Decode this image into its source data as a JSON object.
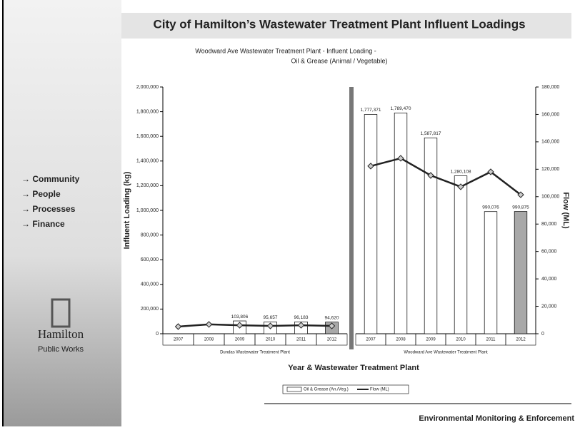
{
  "header": {
    "title": "City of Hamilton’s Wastewater Treatment Plant Influent Loadings"
  },
  "sidebar": {
    "items": [
      "→ Community",
      "→ People",
      "→ Processes",
      "→ Finance"
    ],
    "logo": "Hamilton",
    "logo_subtitle": "Public Works"
  },
  "footer": "Environmental Monitoring & Enforcement",
  "chart_data": {
    "type": "bar",
    "title": [
      "Woodward Ave Wastewater Treatment Plant - Influent Loading -",
      "Oil & Grease (Animal / Vegetable)"
    ],
    "xlabel": "Year & Wastewater Treatment Plant",
    "ylabel": "Influent Loading (kg)",
    "y2label": "Flow (ML)",
    "groups": [
      "Dundas Wastewater Treatment Plant",
      "Woodward Ave Wastewater Treatment Plant"
    ],
    "categories": [
      "2007",
      "2008",
      "2009",
      "2010",
      "2011",
      "2012",
      "2007",
      "2008",
      "2009",
      "2010",
      "2011",
      "2012"
    ],
    "series": [
      {
        "name": "Oil & Grease (An./Veg.)",
        "type": "bar",
        "color": "#ffffff",
        "colors": [
          "#ffffff",
          "#ffffff",
          "#ffffff",
          "#ffffff",
          "#ffffff",
          "#a8a8a8",
          "#ffffff",
          "#ffffff",
          "#ffffff",
          "#ffffff",
          "#ffffff",
          "#a8a8a8"
        ],
        "values": [
          null,
          null,
          103806,
          95657,
          96183,
          94620,
          1777371,
          1789470,
          1587817,
          1280108,
          990076,
          990875
        ],
        "value_labels": [
          null,
          null,
          "103,806",
          "95,657",
          "96,183",
          "94,620",
          "1,777,371",
          "1,789,470",
          "1,587,817",
          "1,280,108",
          "990,076",
          "990,875"
        ]
      },
      {
        "name": "Flow (ML)",
        "type": "line",
        "axis": "y2",
        "color": "#222222",
        "values": [
          5200,
          6800,
          6200,
          5700,
          6200,
          5700,
          122300,
          128000,
          115500,
          107200,
          118100,
          101400
        ]
      }
    ],
    "ylim": [
      0,
      2000000
    ],
    "yticks": [
      0,
      {
        "value": 200000,
        "label": "200,000"
      },
      {
        "value": 400000,
        "label": "400,000"
      },
      {
        "value": 600000,
        "label": "600,000"
      },
      {
        "value": 800000,
        "label": "800,000"
      },
      {
        "value": 1000000,
        "label": "1,000,000"
      },
      {
        "value": 1200000,
        "label": "1,200,000"
      },
      {
        "value": 1400000,
        "label": "1,400,000"
      },
      {
        "value": 1600000,
        "label": "1,600,000"
      },
      {
        "value": 1800000,
        "label": "1,800,000"
      },
      {
        "value": 2000000,
        "label": "2,000,000"
      }
    ],
    "y2lim": [
      0,
      180000
    ],
    "y2ticks": [
      0,
      {
        "value": 20000,
        "label": "20,000"
      },
      {
        "value": 40000,
        "label": "40,000"
      },
      {
        "value": 60000,
        "label": "60,000"
      },
      {
        "value": 80000,
        "label": "80,000"
      },
      {
        "value": 100000,
        "label": "100,000"
      },
      {
        "value": 120000,
        "label": "120,000"
      },
      {
        "value": 140000,
        "label": "140,000"
      },
      {
        "value": 160000,
        "label": "160,000"
      },
      {
        "value": 180000,
        "label": "180,000"
      }
    ],
    "grid": false
  }
}
